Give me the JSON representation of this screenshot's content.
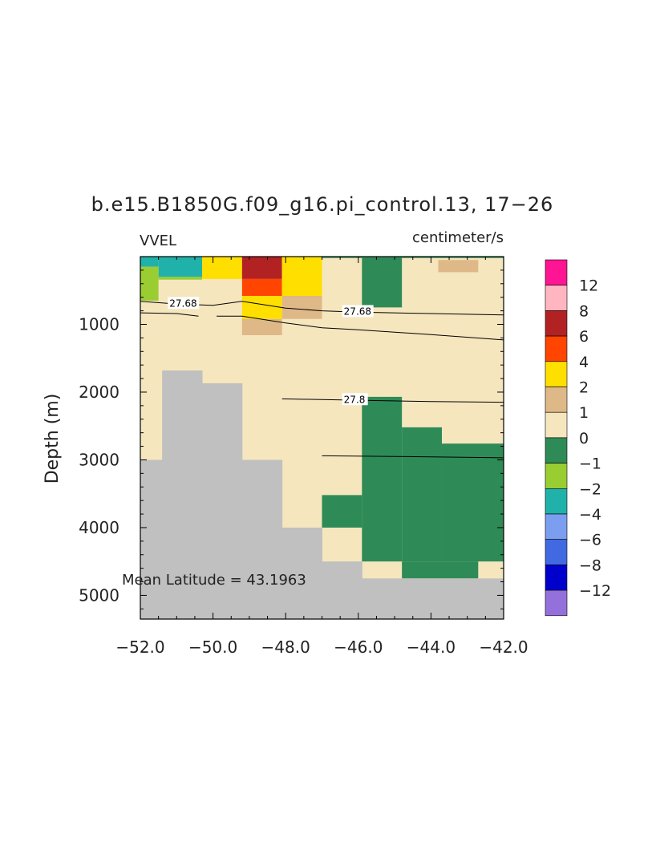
{
  "chart_data": {
    "type": "heatmap",
    "title": "b.e15.B1850G.f09_g16.pi_control.13, 17−26",
    "variable_label": "VVEL",
    "units_label": "centimeter/s",
    "ylabel": "Depth (m)",
    "xlabel": "",
    "annotation": "Mean Latitude = 43.1963",
    "xlim": [
      -52.0,
      -42.0
    ],
    "ylim": [
      5350,
      0
    ],
    "x_ticks": [
      -52.0,
      -50.0,
      -48.0,
      -46.0,
      -44.0,
      -42.0
    ],
    "x_tick_labels": [
      "−52.0",
      "−50.0",
      "−48.0",
      "−46.0",
      "−44.0",
      "−42.0"
    ],
    "y_ticks": [
      1000,
      2000,
      3000,
      4000,
      5000
    ],
    "y_tick_labels": [
      "1000",
      "2000",
      "3000",
      "4000",
      "5000"
    ],
    "background_color": "#f5e6be",
    "land_color": "#c0c0c0",
    "legend": {
      "placement": "right",
      "levels": [
        "12",
        "8",
        "6",
        "4",
        "2",
        "1",
        "0",
        "−1",
        "−2",
        "−4",
        "−6",
        "−8",
        "−12"
      ],
      "colors": [
        "#ff1493",
        "#ffb6c1",
        "#b22222",
        "#ff4500",
        "#ffdf00",
        "#deb887",
        "#f5e6be",
        "#2e8b57",
        "#9acd32",
        "#20b2aa",
        "#7b9ef0",
        "#4169e1",
        "#0000cd",
        "#9370db"
      ]
    },
    "land_columns": [
      {
        "x0": -52.0,
        "x1": -51.4,
        "depth_top": 3000
      },
      {
        "x0": -51.4,
        "x1": -50.3,
        "depth_top": 1680
      },
      {
        "x0": -50.3,
        "x1": -49.2,
        "depth_top": 1870
      },
      {
        "x0": -49.2,
        "x1": -48.1,
        "depth_top": 3000
      },
      {
        "x0": -48.1,
        "x1": -47.0,
        "depth_top": 4000
      },
      {
        "x0": -47.0,
        "x1": -45.9,
        "depth_top": 4500
      },
      {
        "x0": -45.9,
        "x1": -42.0,
        "depth_top": 4750
      }
    ],
    "cells": [
      {
        "x0": -52.0,
        "x1": -51.5,
        "y0": 0,
        "y1": 150,
        "value": -3
      },
      {
        "x0": -51.5,
        "x1": -50.3,
        "y0": 0,
        "y1": 300,
        "value": -3
      },
      {
        "x0": -51.5,
        "x1": -50.3,
        "y0": 300,
        "y1": 340,
        "value": -1.5
      },
      {
        "x0": -52.0,
        "x1": -51.5,
        "y0": 150,
        "y1": 650,
        "value": -1.5
      },
      {
        "x0": -50.3,
        "x1": -49.2,
        "y0": 0,
        "y1": 330,
        "value": 3
      },
      {
        "x0": -49.2,
        "x1": -48.1,
        "y0": 0,
        "y1": 330,
        "value": 7
      },
      {
        "x0": -49.2,
        "x1": -48.1,
        "y0": 330,
        "y1": 580,
        "value": 5
      },
      {
        "x0": -49.2,
        "x1": -48.1,
        "y0": 580,
        "y1": 920,
        "value": 3
      },
      {
        "x0": -49.2,
        "x1": -48.1,
        "y0": 920,
        "y1": 1160,
        "value": 1.5
      },
      {
        "x0": -48.1,
        "x1": -47.0,
        "y0": 0,
        "y1": 580,
        "value": 3
      },
      {
        "x0": -48.1,
        "x1": -47.0,
        "y0": 580,
        "y1": 920,
        "value": 1.5
      },
      {
        "x0": -47.0,
        "x1": -45.9,
        "y0": 0,
        "y1": 20,
        "value": -0.5
      },
      {
        "x0": -45.9,
        "x1": -44.8,
        "y0": 0,
        "y1": 750,
        "value": -0.5
      },
      {
        "x0": -44.8,
        "x1": -42.0,
        "y0": 0,
        "y1": 20,
        "value": -0.5
      },
      {
        "x0": -43.8,
        "x1": -42.7,
        "y0": 50,
        "y1": 230,
        "value": 1.5
      },
      {
        "x0": -45.9,
        "x1": -44.8,
        "y0": 2070,
        "y1": 4500,
        "value": -0.5
      },
      {
        "x0": -44.8,
        "x1": -43.7,
        "y0": 2520,
        "y1": 4500,
        "value": -0.5
      },
      {
        "x0": -43.7,
        "x1": -42.0,
        "y0": 2760,
        "y1": 4500,
        "value": -0.5
      },
      {
        "x0": -47.0,
        "x1": -45.9,
        "y0": 3520,
        "y1": 4000,
        "value": -0.5
      },
      {
        "x0": -44.8,
        "x1": -42.7,
        "y0": 4500,
        "y1": 4750,
        "value": -0.5
      }
    ],
    "contours": [
      {
        "label": "27.68",
        "label_at": [
          -51.2,
          690
        ],
        "points": [
          [
            -52.0,
            660
          ],
          [
            -51.0,
            700
          ],
          [
            -50.0,
            720
          ],
          [
            -49.2,
            660
          ],
          [
            -48.0,
            760
          ],
          [
            -47.0,
            800
          ],
          [
            -46.0,
            820
          ],
          [
            -44.0,
            840
          ],
          [
            -42.0,
            860
          ]
        ]
      },
      {
        "label": "27.68",
        "label_at": [
          -46.4,
          810
        ],
        "points": []
      },
      {
        "label": "",
        "label_at": null,
        "points": [
          [
            -52.0,
            830
          ],
          [
            -51.0,
            840
          ],
          [
            -50.4,
            880
          ]
        ]
      },
      {
        "label": "",
        "label_at": null,
        "points": [
          [
            -49.9,
            880
          ],
          [
            -49.2,
            880
          ],
          [
            -48.0,
            980
          ],
          [
            -47.0,
            1050
          ],
          [
            -46.0,
            1080
          ],
          [
            -44.0,
            1150
          ],
          [
            -42.0,
            1230
          ]
        ]
      },
      {
        "label": "27.8",
        "label_at": [
          -46.4,
          2110
        ],
        "points": [
          [
            -48.1,
            2100
          ],
          [
            -46.0,
            2120
          ],
          [
            -44.0,
            2140
          ],
          [
            -42.0,
            2150
          ]
        ]
      },
      {
        "label": "",
        "label_at": null,
        "points": [
          [
            -47.0,
            2940
          ],
          [
            -45.0,
            2950
          ],
          [
            -42.0,
            2970
          ]
        ]
      }
    ]
  }
}
